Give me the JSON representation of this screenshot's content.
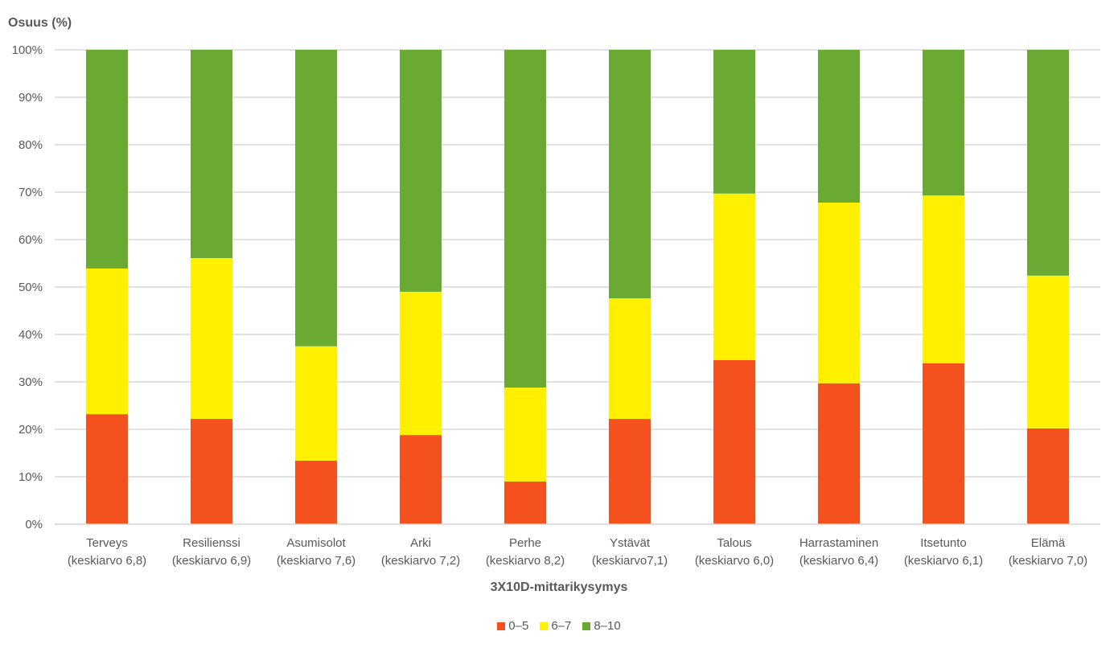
{
  "chart_data": {
    "type": "bar",
    "stacked": true,
    "title": "",
    "ylabel": "Osuus (%)",
    "xlabel": "3X10D-mittarikysymys",
    "ylim": [
      0,
      100
    ],
    "yticks": [
      "0%",
      "10%",
      "20%",
      "30%",
      "40%",
      "50%",
      "60%",
      "70%",
      "80%",
      "90%",
      "100%"
    ],
    "grid": true,
    "legend_position": "bottom",
    "categories": [
      {
        "name": "Terveys",
        "sub": "(keskiarvo 6,8)"
      },
      {
        "name": "Resilienssi",
        "sub": "(keskiarvo 6,9)"
      },
      {
        "name": "Asumisolot",
        "sub": "(keskiarvo 7,6)"
      },
      {
        "name": "Arki",
        "sub": "(keskiarvo 7,2)"
      },
      {
        "name": "Perhe",
        "sub": "(keskiarvo 8,2)"
      },
      {
        "name": "Ystävät",
        "sub": "(keskiarvo7,1)"
      },
      {
        "name": "Talous",
        "sub": "(keskiarvo 6,0)"
      },
      {
        "name": "Harrastaminen",
        "sub": "(keskiarvo 6,4)"
      },
      {
        "name": "Itsetunto",
        "sub": "(keskiarvo 6,1)"
      },
      {
        "name": "Elämä",
        "sub": "(keskiarvo 7,0)"
      }
    ],
    "series": [
      {
        "name": "0–5",
        "color": "#F4511E",
        "values": [
          23.2,
          22.2,
          13.4,
          18.8,
          9.0,
          22.2,
          34.6,
          29.7,
          33.9,
          20.2
        ]
      },
      {
        "name": "6–7",
        "color": "#FFF000",
        "values": [
          30.7,
          33.9,
          24.1,
          30.2,
          19.8,
          25.4,
          35.1,
          38.1,
          35.4,
          32.2
        ]
      },
      {
        "name": "8–10",
        "color": "#6AAA33",
        "values": [
          46.1,
          43.9,
          62.5,
          51.0,
          71.2,
          52.4,
          30.3,
          32.2,
          30.7,
          47.6
        ]
      }
    ]
  }
}
